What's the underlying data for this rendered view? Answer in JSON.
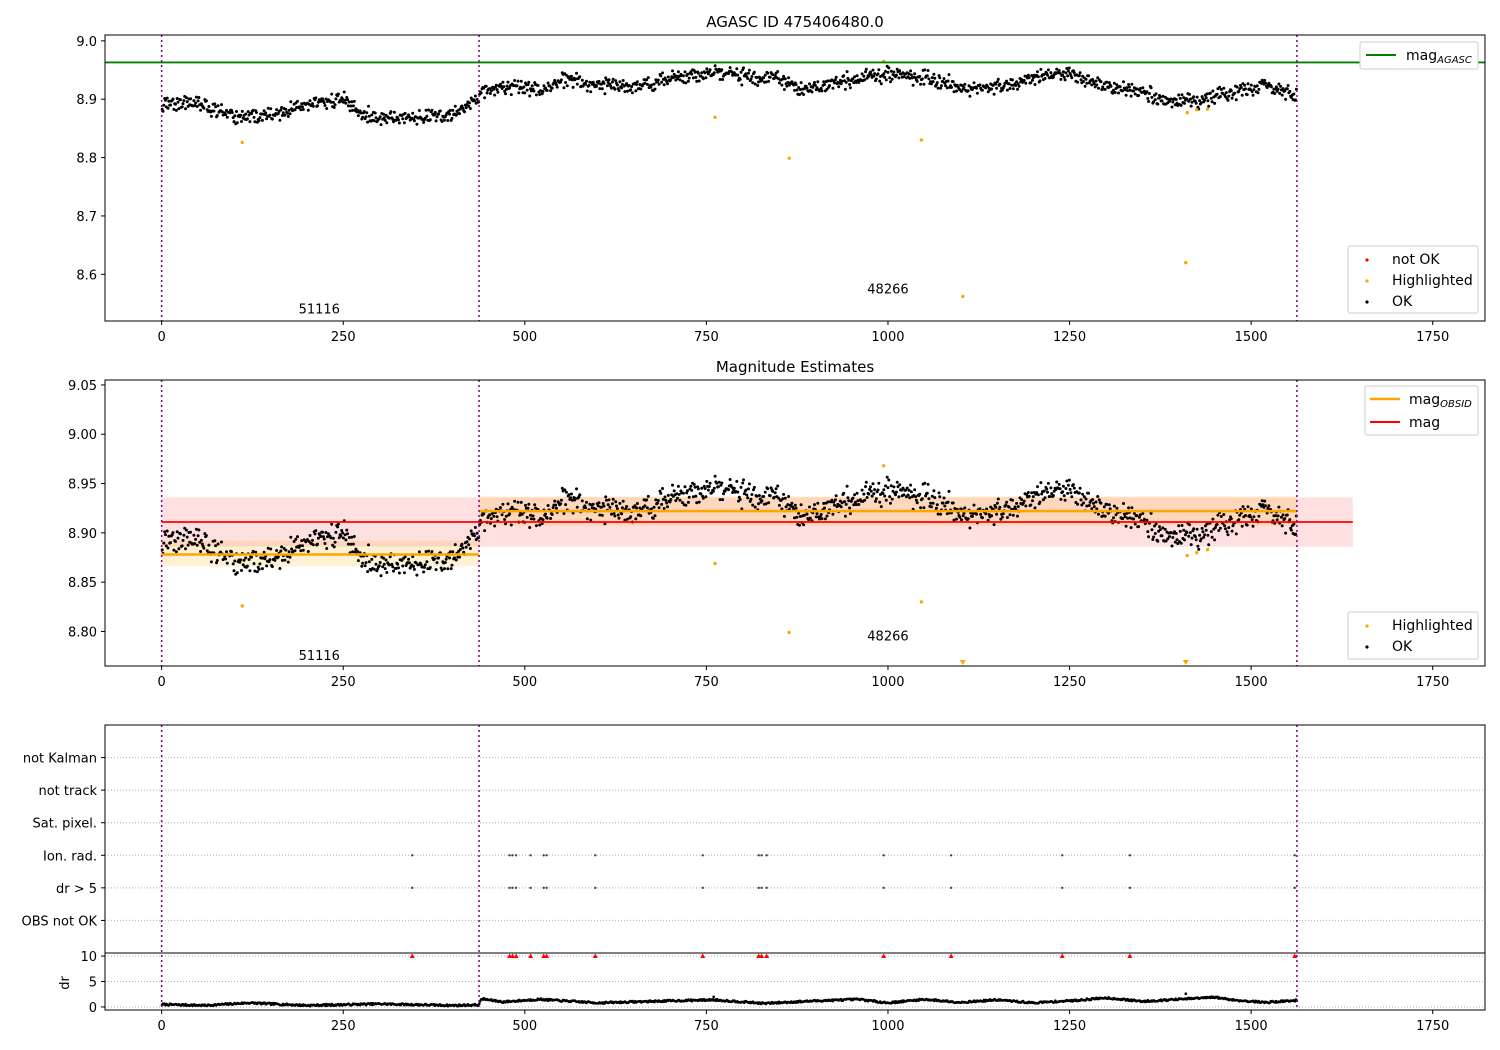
{
  "chart_data": [
    {
      "type": "scatter",
      "title": "AGASC ID 475406480.0",
      "xlim": [
        -78,
        1822
      ],
      "ylim": [
        8.52,
        9.01
      ],
      "x_ticks": [
        0,
        250,
        500,
        750,
        1000,
        1250,
        1500,
        1750
      ],
      "y_ticks": [
        8.6,
        8.7,
        8.8,
        8.9,
        9.0
      ],
      "grid": false,
      "vlines": [
        0,
        437,
        1563
      ],
      "obsid_labels": [
        {
          "x": 217,
          "y": 8.54,
          "text": "51116"
        },
        {
          "x": 1000,
          "y": 8.574,
          "text": "48266"
        }
      ],
      "hline": {
        "name": "mag_AGASC",
        "y": 8.963,
        "color": "#008000"
      },
      "legend_top": {
        "position": "top-right",
        "entries": [
          {
            "label": "mag",
            "sub": "AGASC",
            "color": "#008000"
          }
        ]
      },
      "legend_bottom": {
        "position": "bottom-right",
        "entries": [
          {
            "label": "not OK",
            "color": "#ff0000"
          },
          {
            "label": "Highlighted",
            "color": "#ffa500"
          },
          {
            "label": "OK",
            "color": "#000000"
          }
        ]
      },
      "baseline_segments": [
        {
          "x0": 0,
          "x1": 437,
          "knots": [
            [
              0,
              8.89
            ],
            [
              40,
              8.895
            ],
            [
              100,
              8.87
            ],
            [
              150,
              8.872
            ],
            [
              200,
              8.89
            ],
            [
              250,
              8.9
            ],
            [
              280,
              8.87
            ],
            [
              330,
              8.868
            ],
            [
              400,
              8.872
            ],
            [
              437,
              8.9
            ]
          ],
          "noise": 0.009
        },
        {
          "x0": 437,
          "x1": 1563,
          "knots": [
            [
              437,
              8.915
            ],
            [
              480,
              8.922
            ],
            [
              520,
              8.915
            ],
            [
              560,
              8.935
            ],
            [
              600,
              8.925
            ],
            [
              640,
              8.92
            ],
            [
              700,
              8.935
            ],
            [
              760,
              8.945
            ],
            [
              850,
              8.935
            ],
            [
              880,
              8.915
            ],
            [
              930,
              8.928
            ],
            [
              1000,
              8.945
            ],
            [
              1060,
              8.935
            ],
            [
              1110,
              8.918
            ],
            [
              1160,
              8.925
            ],
            [
              1240,
              8.945
            ],
            [
              1290,
              8.925
            ],
            [
              1350,
              8.91
            ],
            [
              1390,
              8.895
            ],
            [
              1430,
              8.9
            ],
            [
              1490,
              8.915
            ],
            [
              1520,
              8.925
            ],
            [
              1563,
              8.905
            ]
          ],
          "noise": 0.009
        }
      ],
      "highlighted": [
        [
          111,
          8.826
        ],
        [
          762,
          8.869
        ],
        [
          864,
          8.799
        ],
        [
          994,
          8.965
        ],
        [
          1046,
          8.83
        ],
        [
          1103,
          8.562
        ],
        [
          1410,
          8.62
        ],
        [
          1412,
          8.877
        ],
        [
          1425,
          8.882
        ],
        [
          1440,
          8.883
        ]
      ]
    },
    {
      "type": "scatter",
      "title": "Magnitude Estimates",
      "xlim": [
        -78,
        1822
      ],
      "ylim": [
        8.765,
        9.055
      ],
      "x_ticks": [
        0,
        250,
        500,
        750,
        1000,
        1250,
        1500,
        1750
      ],
      "y_ticks": [
        8.8,
        8.85,
        8.9,
        8.95,
        9.0,
        9.05
      ],
      "y_tick_labels": [
        "8.80",
        "8.85",
        "8.90",
        "8.95",
        "9.00",
        "9.05"
      ],
      "grid": false,
      "vlines": [
        0,
        437,
        1563
      ],
      "obsid_labels": [
        {
          "x": 217,
          "y": 8.775,
          "text": "51116"
        },
        {
          "x": 1000,
          "y": 8.795,
          "text": "48266"
        }
      ],
      "mag_line": {
        "name": "mag",
        "y": 8.911,
        "band": [
          8.886,
          8.936
        ],
        "x0": 0,
        "x1": 1640,
        "color": "#ff0000"
      },
      "obsid_mag": [
        {
          "x0": 0,
          "x1": 437,
          "y": 8.878,
          "band": [
            8.866,
            8.892
          ]
        },
        {
          "x0": 437,
          "x1": 1563,
          "y": 8.922,
          "band": [
            8.907,
            8.937
          ]
        }
      ],
      "legend_top": {
        "position": "top-right",
        "entries": [
          {
            "label": "mag",
            "sub": "OBSID",
            "color": "#ffa500"
          },
          {
            "label": "mag",
            "color": "#ff0000"
          }
        ]
      },
      "legend_bottom": {
        "position": "bottom-right",
        "entries": [
          {
            "label": "Highlighted",
            "color": "#ffa500"
          },
          {
            "label": "OK",
            "color": "#000000"
          }
        ]
      },
      "highlighted": [
        [
          111,
          8.826
        ],
        [
          762,
          8.869
        ],
        [
          864,
          8.799
        ],
        [
          994,
          8.968
        ],
        [
          1046,
          8.83
        ],
        [
          1412,
          8.877
        ],
        [
          1425,
          8.88
        ],
        [
          1440,
          8.883
        ]
      ],
      "below_range_markers": [
        1103,
        1410
      ]
    },
    {
      "type": "scatter",
      "title": "",
      "xlim": [
        -78,
        1822
      ],
      "x_ticks": [
        0,
        250,
        500,
        750,
        1000,
        1250,
        1500,
        1750
      ],
      "vlines": [
        0,
        437,
        1563
      ],
      "flag_rows": [
        "not Kalman",
        "not track",
        "Sat. pixel.",
        "Ion. rad.",
        "dr > 5",
        "OBS not OK"
      ],
      "flag_events": [
        345,
        479,
        483,
        488,
        508,
        526,
        530,
        597,
        745,
        822,
        826,
        833,
        994,
        1087,
        1240,
        1333,
        1560
      ],
      "dr_ylabel": "dr",
      "dr_ylim": [
        -0.6,
        10.6
      ],
      "dr_y_ticks": [
        0,
        5,
        10
      ],
      "dr_clip_value": 10,
      "dr_color_clipped": "#ff0000",
      "dr_knots": [
        [
          0,
          0.5
        ],
        [
          60,
          0.3
        ],
        [
          120,
          0.8
        ],
        [
          200,
          0.3
        ],
        [
          300,
          0.6
        ],
        [
          400,
          0.3
        ],
        [
          437,
          0.4
        ],
        [
          440,
          1.6
        ],
        [
          470,
          1.0
        ],
        [
          520,
          1.5
        ],
        [
          600,
          0.8
        ],
        [
          700,
          1.2
        ],
        [
          760,
          1.4
        ],
        [
          830,
          0.7
        ],
        [
          900,
          1.2
        ],
        [
          960,
          1.5
        ],
        [
          1000,
          0.8
        ],
        [
          1050,
          1.5
        ],
        [
          1100,
          0.9
        ],
        [
          1150,
          1.4
        ],
        [
          1200,
          0.8
        ],
        [
          1260,
          1.3
        ],
        [
          1300,
          1.8
        ],
        [
          1350,
          1.1
        ],
        [
          1400,
          1.5
        ],
        [
          1450,
          1.9
        ],
        [
          1480,
          1.3
        ],
        [
          1520,
          0.9
        ],
        [
          1563,
          1.3
        ]
      ],
      "dr_outliers": [
        [
          760,
          2.0
        ],
        [
          1410,
          2.6
        ]
      ]
    }
  ]
}
